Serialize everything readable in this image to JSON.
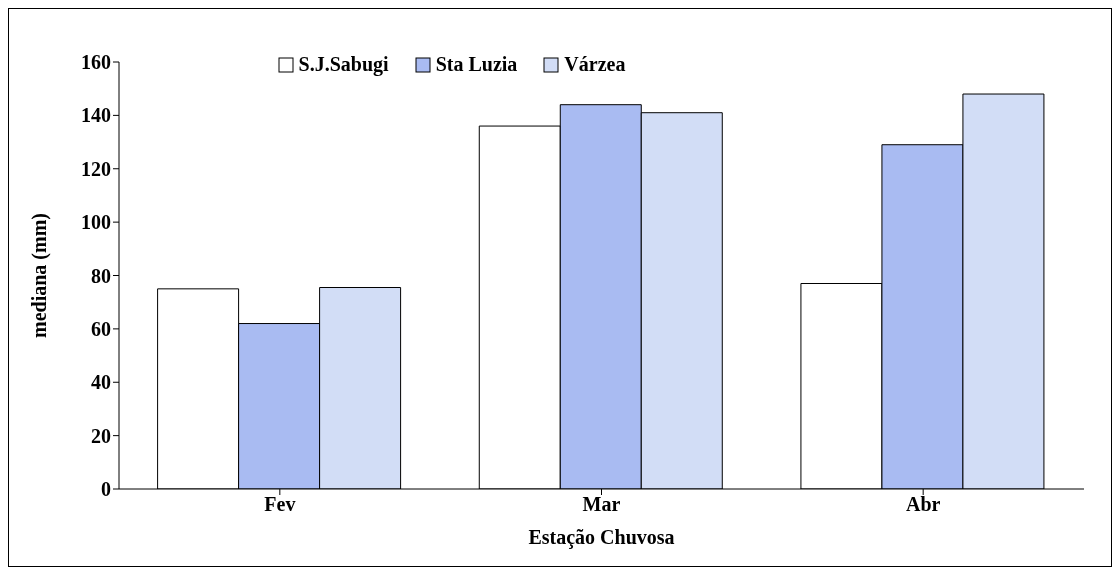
{
  "chart_data": {
    "type": "bar",
    "xlabel": "Estação Chuvosa",
    "ylabel": "mediana (mm)",
    "categories": [
      "Fev",
      "Mar",
      "Abr"
    ],
    "series": [
      {
        "name": "S.J.Sabugi",
        "color": "#ffffff",
        "values": [
          75,
          136,
          77
        ]
      },
      {
        "name": "Sta Luzia",
        "color": "#a9bbf2",
        "values": [
          62,
          144,
          129
        ]
      },
      {
        "name": "Várzea",
        "color": "#d2ddf6",
        "values": [
          75.5,
          141,
          148
        ]
      }
    ],
    "ylim": [
      0,
      160
    ],
    "yticks": [
      0,
      20,
      40,
      60,
      80,
      100,
      120,
      140,
      160
    ],
    "grid": false,
    "legend": "top"
  }
}
